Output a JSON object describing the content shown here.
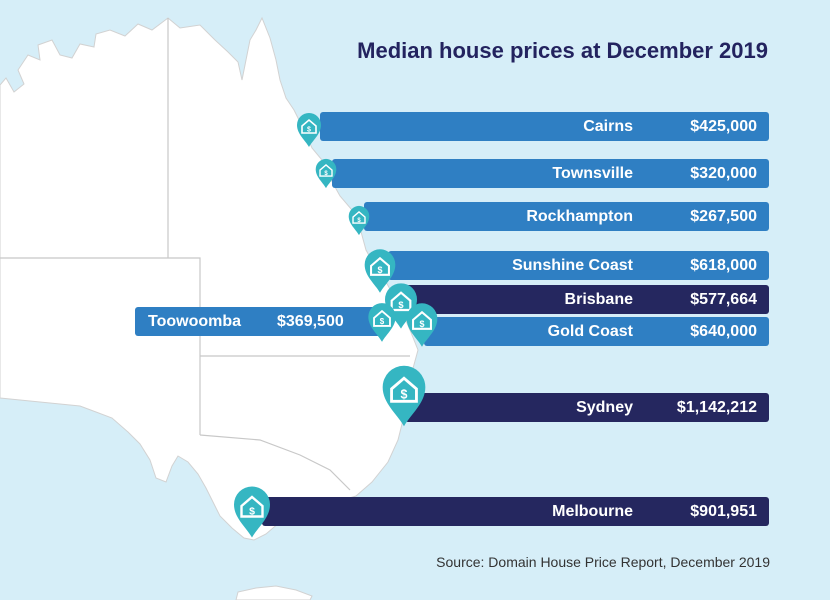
{
  "title": "Median house prices at December 2019",
  "source": "Source: Domain House Price Report, December 2019",
  "pin_symbol": "$",
  "colors": {
    "background": "#d6eef8",
    "land": "#ffffff",
    "border": "#c8c8c8",
    "bar_light": "#2f7fc3",
    "bar_dark": "#25275f",
    "pin": "#35b6c2",
    "title": "#23235f"
  },
  "cities": [
    {
      "name": "Cairns",
      "price": "$425,000",
      "style": "light"
    },
    {
      "name": "Townsville",
      "price": "$320,000",
      "style": "light"
    },
    {
      "name": "Rockhampton",
      "price": "$267,500",
      "style": "light"
    },
    {
      "name": "Sunshine Coast",
      "price": "$618,000",
      "style": "light"
    },
    {
      "name": "Brisbane",
      "price": "$577,664",
      "style": "dark"
    },
    {
      "name": "Gold Coast",
      "price": "$640,000",
      "style": "light"
    },
    {
      "name": "Toowoomba",
      "price": "$369,500",
      "style": "light"
    },
    {
      "name": "Sydney",
      "price": "$1,142,212",
      "style": "dark"
    },
    {
      "name": "Melbourne",
      "price": "$901,951",
      "style": "dark"
    }
  ]
}
